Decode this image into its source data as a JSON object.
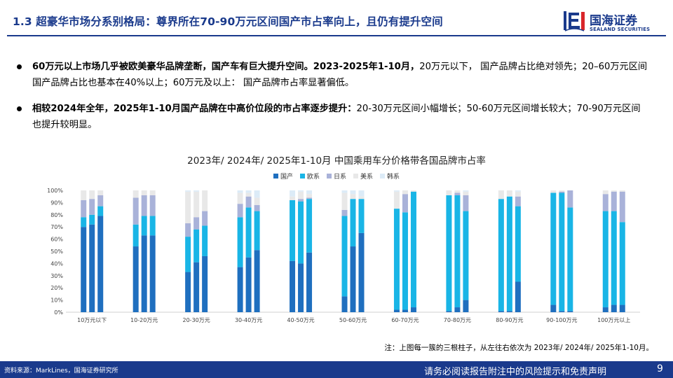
{
  "header": {
    "title": "1.3 超豪华市场分系别格局：尊界所在70-90万元区间国产市占率向上，且仍有提升空间",
    "logo_cn": "国海证券",
    "logo_en": "SEALAND SECURITIES"
  },
  "bullets": [
    {
      "bold": "60万元以上市场几乎被欧美豪华品牌垄断，国产车有巨大提升空间。2023-2025年1-10月，",
      "text": "20万元以下， 国产品牌占比绝对领先；20–60万元区间国产品牌占比也基本在40%以上；60万元及以上： 国产品牌市占率显著偏低。"
    },
    {
      "bold": "相较2024年全年，2025年1-10月国产品牌在中高价位段的市占率逐步提升：",
      "text": "20-30万元区间小幅增长；50-60万元区间增长较大；70-90万元区间也提升较明显。"
    }
  ],
  "colors": {
    "brand": "#1a3a8c",
    "series": [
      "#1f6fbf",
      "#19b5e6",
      "#a9b2d9",
      "#e8e8e8",
      "#dcebf7"
    ]
  },
  "chart_data": {
    "type": "bar",
    "stacked": true,
    "title": "2023年/ 2024年/ 2025年1-10月  中国乘用车分价格带各国品牌市占率",
    "categories": [
      "10万元以下",
      "10-20万元",
      "20-30万元",
      "30-40万元",
      "40-50万元",
      "50-60万元",
      "60-70万元",
      "70-80万元",
      "80-90万元",
      "90-100万元",
      "100万元以上"
    ],
    "bars_per_category": [
      "2023年",
      "2024年",
      "2025年1-10月"
    ],
    "series": [
      {
        "name": "国产",
        "values": [
          [
            70,
            72,
            79
          ],
          [
            54,
            63,
            63
          ],
          [
            33,
            41,
            46
          ],
          [
            37,
            45,
            51
          ],
          [
            42,
            40,
            49
          ],
          [
            13,
            54,
            65
          ],
          [
            2,
            2,
            4
          ],
          [
            1,
            4,
            10
          ],
          [
            1,
            1,
            25
          ],
          [
            6,
            1,
            1
          ],
          [
            4,
            6,
            6
          ]
        ]
      },
      {
        "name": "欧系",
        "values": [
          [
            8,
            8,
            8
          ],
          [
            18,
            16,
            16
          ],
          [
            29,
            27,
            25
          ],
          [
            41,
            41,
            32
          ],
          [
            50,
            51,
            44
          ],
          [
            66,
            39,
            28
          ],
          [
            83,
            80,
            95
          ],
          [
            95,
            92,
            73
          ],
          [
            92,
            94,
            62
          ],
          [
            92,
            97,
            85
          ],
          [
            79,
            77,
            68
          ]
        ]
      },
      {
        "name": "日系",
        "values": [
          [
            14,
            13,
            9
          ],
          [
            22,
            17,
            17
          ],
          [
            11,
            10,
            12
          ],
          [
            11,
            9,
            5
          ],
          [
            0,
            2,
            1
          ],
          [
            5,
            0,
            0
          ],
          [
            0,
            15,
            0
          ],
          [
            0,
            2,
            13
          ],
          [
            0,
            0,
            8
          ],
          [
            0,
            1,
            14
          ],
          [
            14,
            16,
            25
          ]
        ]
      },
      {
        "name": "美系",
        "values": [
          [
            8,
            7,
            4
          ],
          [
            6,
            4,
            4
          ],
          [
            26,
            21,
            17
          ],
          [
            9,
            3,
            6
          ],
          [
            3,
            6,
            3
          ],
          [
            14,
            4,
            2
          ],
          [
            14,
            3,
            1
          ],
          [
            4,
            2,
            3
          ],
          [
            7,
            5,
            4
          ],
          [
            2,
            1,
            0
          ],
          [
            3,
            1,
            1
          ]
        ]
      },
      {
        "name": "韩系",
        "values": [
          [
            0,
            0,
            0
          ],
          [
            0,
            0,
            0
          ],
          [
            1,
            1,
            0
          ],
          [
            2,
            2,
            6
          ],
          [
            5,
            1,
            3
          ],
          [
            2,
            3,
            5
          ],
          [
            1,
            0,
            0
          ],
          [
            0,
            0,
            1
          ],
          [
            0,
            0,
            1
          ],
          [
            0,
            0,
            0
          ],
          [
            0,
            0,
            0
          ]
        ]
      }
    ],
    "yticks": [
      "0%",
      "10%",
      "20%",
      "30%",
      "40%",
      "50%",
      "60%",
      "70%",
      "80%",
      "90%",
      "100%"
    ],
    "ylim": [
      0,
      100
    ],
    "legend": "top-center",
    "grid": false
  },
  "note": "注：上图每一簇的三根柱子，从左往右依次为 2023年/ 2024年/ 2025年1-10月。",
  "footer": {
    "source": "资料来源：MarkLines，国海证券研究所",
    "disclaimer": "请务必阅读报告附注中的风险提示和免责声明",
    "page": "9"
  }
}
